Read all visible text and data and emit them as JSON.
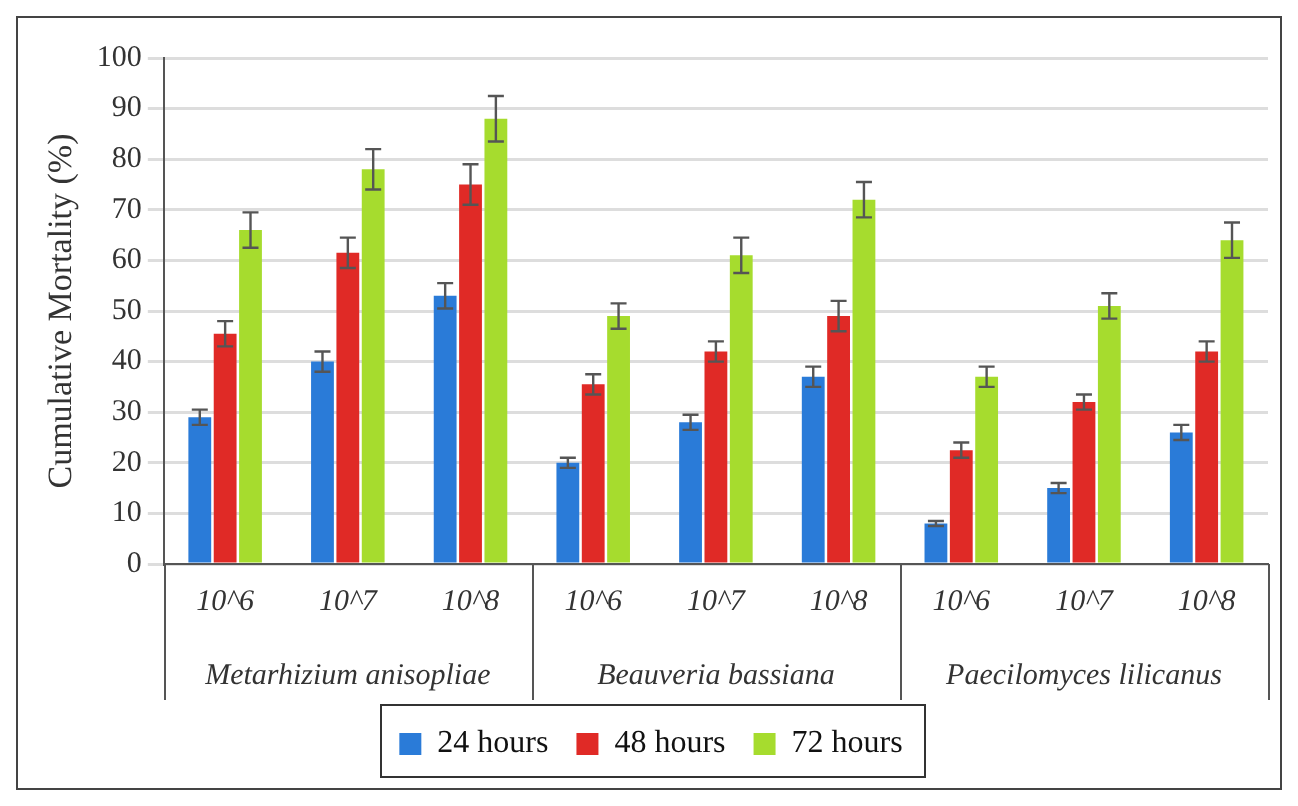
{
  "chart_data": {
    "type": "bar",
    "ylabel": "Cumulative Mortality (%)",
    "categories": [
      "10^6",
      "10^7",
      "10^8",
      "10^6",
      "10^7",
      "10^8",
      "10^6",
      "10^7",
      "10^8"
    ],
    "annotations": [
      "Metarhizium anisopliae",
      "Beauveria bassiana",
      "Paecilomyces lilicanus"
    ],
    "series": [
      {
        "name": "24 hours",
        "color": "#2a7bd8",
        "values": [
          29,
          40,
          53,
          20,
          28,
          37,
          8,
          15,
          26
        ],
        "errors": [
          1.5,
          2,
          2.5,
          1,
          1.5,
          2,
          0.5,
          1,
          1.5
        ]
      },
      {
        "name": "48 hours",
        "color": "#e02a26",
        "values": [
          45.5,
          61.5,
          75,
          35.5,
          42,
          49,
          22.5,
          32,
          42
        ],
        "errors": [
          2.5,
          3,
          4,
          2,
          2,
          3,
          1.5,
          1.5,
          2
        ]
      },
      {
        "name": "72 hours",
        "color": "#a6dc2e",
        "values": [
          66,
          78,
          88,
          49,
          61,
          72,
          37,
          51,
          64
        ],
        "errors": [
          3.5,
          4,
          4.5,
          2.5,
          3.5,
          3.5,
          2,
          2.5,
          3.5
        ]
      }
    ],
    "ylim": [
      0,
      100
    ],
    "yticks": [
      0,
      10,
      20,
      30,
      40,
      50,
      60,
      70,
      80,
      90,
      100
    ],
    "grid": "y",
    "legend": "bottom"
  }
}
